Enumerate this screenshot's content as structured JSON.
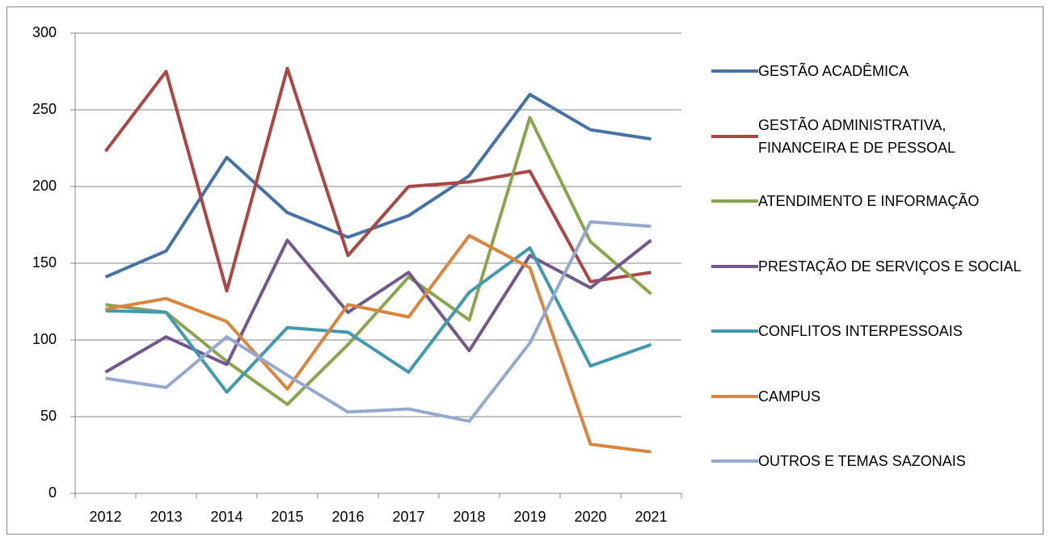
{
  "chart_data": {
    "type": "line",
    "categories": [
      "2012",
      "2013",
      "2014",
      "2015",
      "2016",
      "2017",
      "2018",
      "2019",
      "2020",
      "2021"
    ],
    "series": [
      {
        "name": "GESTÃO ACADÊMICA",
        "color": "#4572a7",
        "values": [
          141,
          158,
          219,
          183,
          167,
          181,
          207,
          260,
          237,
          231
        ]
      },
      {
        "name": "GESTÃO ADMINISTRATIVA, FINANCEIRA E DE PESSOAL",
        "color": "#aa4643",
        "values": [
          223,
          275,
          132,
          277,
          155,
          200,
          203,
          210,
          138,
          144
        ]
      },
      {
        "name": "ATENDIMENTO E INFORMAÇÃO",
        "color": "#89a54e",
        "values": [
          123,
          118,
          86,
          58,
          97,
          141,
          113,
          245,
          164,
          130
        ]
      },
      {
        "name": "PRESTAÇÃO DE SERVIÇOS E SOCIAL",
        "color": "#71588f",
        "values": [
          79,
          102,
          84,
          165,
          118,
          144,
          93,
          155,
          134,
          165
        ]
      },
      {
        "name": "CONFLITOS INTERPESSOAIS",
        "color": "#4198af",
        "values": [
          119,
          118,
          66,
          108,
          105,
          79,
          131,
          160,
          83,
          97
        ]
      },
      {
        "name": "CAMPUS",
        "color": "#db843d",
        "values": [
          120,
          127,
          112,
          68,
          123,
          115,
          168,
          147,
          32,
          27
        ]
      },
      {
        "name": "OUTROS E TEMAS SAZONAIS",
        "color": "#93a9cf",
        "values": [
          75,
          69,
          102,
          77,
          53,
          55,
          47,
          98,
          177,
          174
        ]
      }
    ],
    "ylim": [
      0,
      300
    ],
    "yticks": [
      0,
      50,
      100,
      150,
      200,
      250,
      300
    ],
    "grid": true
  }
}
